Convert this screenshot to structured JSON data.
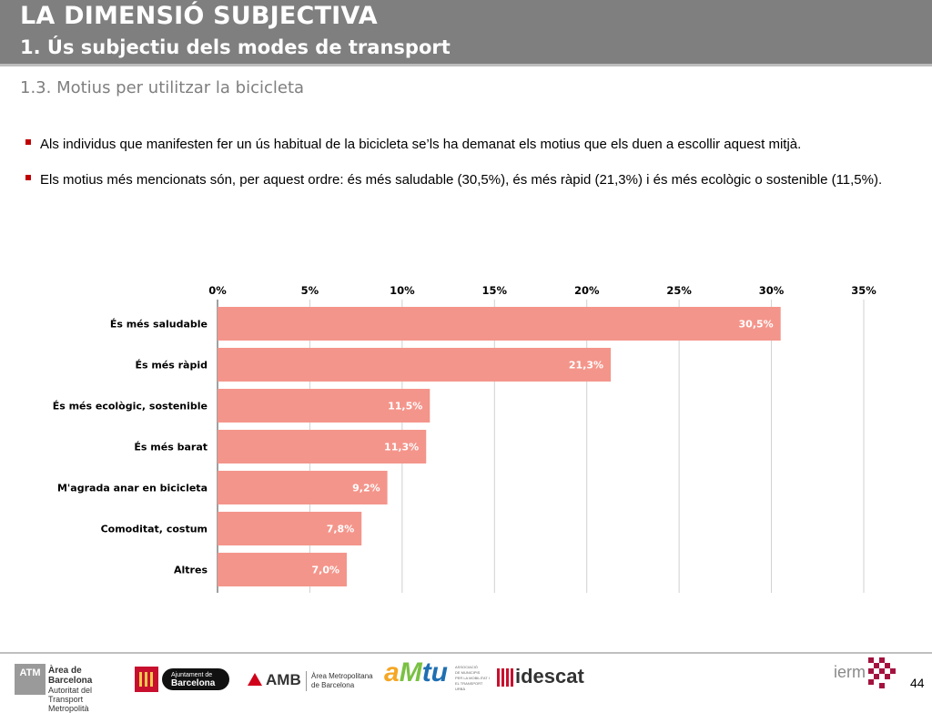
{
  "header": {
    "title": "LA DIMENSIÓ SUBJECTIVA",
    "subtitle": "1. Ús subjectiu dels modes de transport"
  },
  "section_title": "1.3. Motius per utilitzar la bicicleta",
  "bullets": [
    "Als individus que manifesten fer un ús habitual de la bicicleta se’ls ha demanat els motius que els duen a escollir aquest mitjà.",
    "Els motius més mencionats són, per aquest ordre: és més saludable (30,5%), és més ràpid (21,3%) i és més ecològic o sostenible (11,5%)."
  ],
  "chart_data": {
    "type": "bar",
    "orientation": "horizontal",
    "categories": [
      "És més saludable",
      "És més ràpid",
      "És més ecològic, sostenible",
      "És més barat",
      "M'agrada anar en bicicleta",
      "Comoditat, costum",
      "Altres"
    ],
    "values": [
      30.5,
      21.3,
      11.5,
      11.3,
      9.2,
      7.8,
      7.0
    ],
    "value_labels": [
      "30,5%",
      "21,3%",
      "11,5%",
      "11,3%",
      "9,2%",
      "7,8%",
      "7,0%"
    ],
    "x_ticks": [
      0,
      5,
      10,
      15,
      20,
      25,
      30,
      35
    ],
    "x_tick_labels": [
      "0%",
      "5%",
      "10%",
      "15%",
      "20%",
      "25%",
      "30%",
      "35%"
    ],
    "xlim": [
      0,
      35
    ],
    "x_axis_position": "top",
    "grid": true,
    "legend": "none",
    "bar_color": "#f4958b",
    "title": "",
    "xlabel": "",
    "ylabel": ""
  },
  "footer": {
    "page_number": "44",
    "logos": {
      "atm": {
        "mark": "ATM",
        "line1": "Àrea de Barcelona",
        "line2": "Autoritat del Transport",
        "line3": "Metropolità"
      },
      "barcelona": {
        "line1": "Ajuntament de",
        "line2": "Barcelona"
      },
      "amb": {
        "name": "AMB",
        "line1": "Àrea Metropolitana",
        "line2": "de Barcelona"
      },
      "amtu": {
        "a": "a",
        "m": "M",
        "tu": "tu",
        "line1": "ASSOCIACIÓ",
        "line2": "DE MUNICIPIS",
        "line3": "PER LA MOBILITAT I",
        "line4": "EL TRANSPORT URBÀ"
      },
      "idescat": {
        "name": "idescat"
      },
      "ierm": {
        "name": "ierm"
      }
    }
  }
}
